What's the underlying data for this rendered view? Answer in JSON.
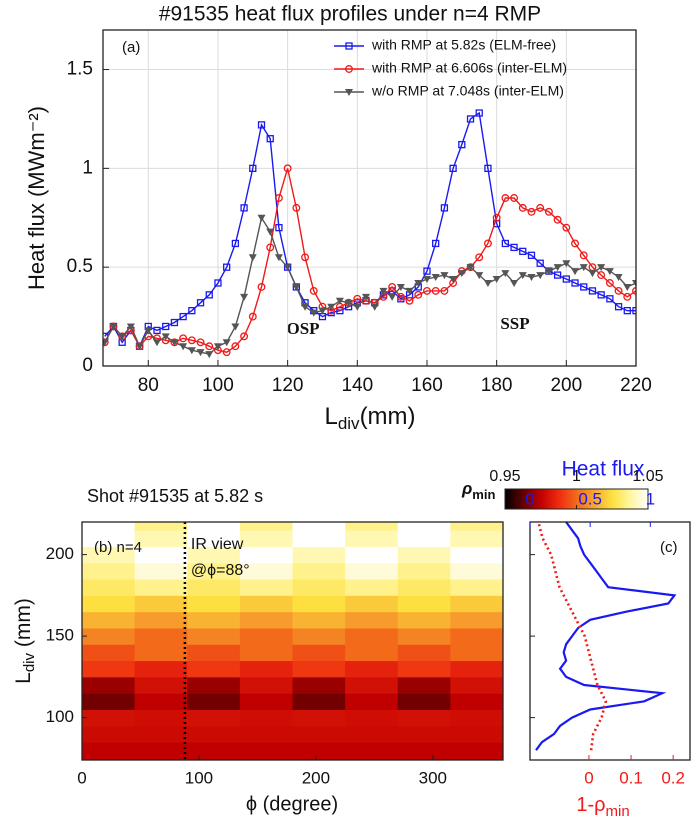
{
  "chart_data": [
    {
      "type": "line",
      "title": "#91535 heat flux profiles under n=4 RMP",
      "panel": "(a)",
      "ylabel": "Heat flux (MWm⁻²)",
      "xlabel": {
        "text": "L",
        "sub": "div",
        "unit": "(mm)"
      },
      "annotations": [
        "OSP",
        "SSP"
      ],
      "grid": true,
      "legend": "upper right",
      "xlim": [
        67,
        220
      ],
      "ylim": [
        0,
        1.7
      ],
      "xticks": [
        80,
        100,
        120,
        140,
        160,
        180,
        200,
        220
      ],
      "yticks": [
        0,
        0.5,
        1,
        1.5
      ],
      "x": [
        67.5,
        70,
        72.5,
        75,
        77.5,
        80,
        82.5,
        85,
        87.5,
        90,
        92.5,
        95,
        97.5,
        100,
        102.5,
        105,
        107.5,
        110,
        112.5,
        115,
        117.5,
        120,
        122.5,
        125,
        127.5,
        130,
        132.5,
        135,
        137.5,
        140,
        142.5,
        145,
        147.5,
        150,
        152.5,
        155,
        157.5,
        160,
        162.5,
        165,
        167.5,
        170,
        172.5,
        175,
        177.5,
        180,
        182.5,
        185,
        187.5,
        190,
        192.5,
        195,
        197.5,
        200,
        202.5,
        205,
        207.5,
        210,
        212.5,
        215,
        217.5,
        220
      ],
      "series": [
        {
          "name": "with RMP at 5.82s (ELM-free)",
          "color": "#1a1af0",
          "marker": "square",
          "values": [
            0.15,
            0.2,
            0.12,
            0.18,
            0.1,
            0.2,
            0.18,
            0.2,
            0.22,
            0.25,
            0.28,
            0.32,
            0.36,
            0.42,
            0.5,
            0.62,
            0.8,
            1.0,
            1.22,
            1.15,
            0.7,
            0.5,
            0.4,
            0.32,
            0.28,
            0.25,
            0.27,
            0.28,
            0.3,
            0.32,
            0.33,
            0.32,
            0.36,
            0.38,
            0.34,
            0.36,
            0.4,
            0.48,
            0.62,
            0.8,
            1.0,
            1.12,
            1.25,
            1.28,
            1.0,
            0.72,
            0.62,
            0.6,
            0.58,
            0.56,
            0.52,
            0.48,
            0.46,
            0.44,
            0.42,
            0.4,
            0.38,
            0.36,
            0.34,
            0.3,
            0.28,
            0.28
          ]
        },
        {
          "name": "with RMP at 6.606s (inter-ELM)",
          "color": "#f01a1a",
          "marker": "circle",
          "values": [
            0.12,
            0.2,
            0.15,
            0.18,
            0.1,
            0.15,
            0.14,
            0.13,
            0.12,
            0.14,
            0.13,
            0.12,
            0.1,
            0.08,
            0.07,
            0.1,
            0.15,
            0.25,
            0.4,
            0.6,
            0.85,
            1.0,
            0.8,
            0.55,
            0.38,
            0.3,
            0.28,
            0.3,
            0.32,
            0.34,
            0.33,
            0.32,
            0.35,
            0.4,
            0.35,
            0.33,
            0.36,
            0.38,
            0.38,
            0.38,
            0.42,
            0.48,
            0.5,
            0.55,
            0.62,
            0.75,
            0.85,
            0.85,
            0.8,
            0.78,
            0.8,
            0.78,
            0.74,
            0.7,
            0.62,
            0.56,
            0.5,
            0.46,
            0.42,
            0.38,
            0.35,
            0.38
          ]
        },
        {
          "name": "w/o RMP at 7.048s (inter-ELM)",
          "color": "#555555",
          "marker": "triangle",
          "values": [
            0.12,
            0.2,
            0.15,
            0.2,
            0.1,
            0.18,
            0.12,
            0.15,
            0.12,
            0.1,
            0.08,
            0.07,
            0.06,
            0.1,
            0.12,
            0.2,
            0.35,
            0.55,
            0.75,
            0.68,
            0.55,
            0.5,
            0.4,
            0.3,
            0.27,
            0.28,
            0.3,
            0.33,
            0.32,
            0.3,
            0.35,
            0.3,
            0.38,
            0.35,
            0.4,
            0.38,
            0.42,
            0.44,
            0.45,
            0.46,
            0.44,
            0.47,
            0.5,
            0.46,
            0.42,
            0.44,
            0.47,
            0.42,
            0.46,
            0.45,
            0.46,
            0.48,
            0.5,
            0.52,
            0.48,
            0.5,
            0.47,
            0.5,
            0.48,
            0.45,
            0.4,
            0.42
          ]
        }
      ]
    },
    {
      "type": "heatmap",
      "title": "Shot #91535 at 5.82 s",
      "panel": "(b) n=4",
      "annotations": [
        "IR view",
        "@ϕ=88°"
      ],
      "ir_view_phi": 88,
      "xlabel": "ϕ (degree)",
      "ylabel": {
        "text": "L",
        "sub": "div",
        "unit": " (mm)"
      },
      "xlim": [
        0,
        360
      ],
      "ylim": [
        74,
        220
      ],
      "xticks": [
        0,
        100,
        200,
        300
      ],
      "yticks": [
        100,
        150,
        200
      ],
      "cbar_label": {
        "text": "ρ",
        "sub": "min"
      },
      "clim": [
        0.95,
        1.05
      ],
      "cticks": [
        0.95,
        1,
        1.05
      ],
      "colormap": [
        "#000000",
        "#600000",
        "#c00000",
        "#ee2a10",
        "#f26a1a",
        "#f8a830",
        "#fde040",
        "#fff6a0",
        "#ffffff"
      ],
      "x": [
        0,
        45,
        90,
        135,
        180,
        225,
        270,
        315
      ],
      "y": [
        80,
        90,
        100,
        110,
        120,
        130,
        140,
        150,
        160,
        170,
        180,
        190,
        200,
        210,
        220
      ],
      "z": [
        [
          0.975,
          0.975,
          0.975,
          0.975,
          0.975,
          0.975,
          0.975,
          0.975
        ],
        [
          0.978,
          0.978,
          0.978,
          0.978,
          0.978,
          0.978,
          0.978,
          0.978
        ],
        [
          0.98,
          0.979,
          0.98,
          0.979,
          0.98,
          0.979,
          0.98,
          0.979
        ],
        [
          0.965,
          0.975,
          0.965,
          0.975,
          0.965,
          0.975,
          0.965,
          0.975
        ],
        [
          0.97,
          0.98,
          0.97,
          0.98,
          0.97,
          0.98,
          0.97,
          0.98
        ],
        [
          0.99,
          0.985,
          0.99,
          0.985,
          0.99,
          0.985,
          0.99,
          0.985
        ],
        [
          0.995,
          1.0,
          0.995,
          1.0,
          0.995,
          1.0,
          0.995,
          1.0
        ],
        [
          1.005,
          1.0,
          1.005,
          1.0,
          1.005,
          1.0,
          1.005,
          1.0
        ],
        [
          1.015,
          1.01,
          1.015,
          1.01,
          1.015,
          1.01,
          1.015,
          1.01
        ],
        [
          1.025,
          1.02,
          1.025,
          1.02,
          1.025,
          1.02,
          1.025,
          1.02
        ],
        [
          1.03,
          1.035,
          1.03,
          1.035,
          1.03,
          1.035,
          1.03,
          1.035
        ],
        [
          1.035,
          1.045,
          1.035,
          1.045,
          1.035,
          1.045,
          1.035,
          1.045
        ],
        [
          1.04,
          1.05,
          1.04,
          1.05,
          1.04,
          1.05,
          1.04,
          1.05
        ],
        [
          1.05,
          1.04,
          1.05,
          1.04,
          1.05,
          1.04,
          1.05,
          1.04
        ],
        [
          1.05,
          1.035,
          1.05,
          1.035,
          1.05,
          1.035,
          1.05,
          1.035
        ]
      ]
    },
    {
      "type": "profile",
      "panel": "(c)",
      "x2label": "Heat flux",
      "xlabel": {
        "text": "1-ρ",
        "sub": "min"
      },
      "ylim": [
        74,
        220
      ],
      "yticks": [
        100,
        150,
        200
      ],
      "x2lim": [
        0,
        1.33
      ],
      "x2ticks": [
        0,
        0.5,
        1
      ],
      "xlim": [
        -0.14,
        0.24
      ],
      "xticks": [
        0,
        0.1,
        0.2
      ],
      "series": [
        {
          "axis": "x2",
          "color": "#1a1af0",
          "style": "solid",
          "y": [
            80,
            85,
            90,
            95,
            100,
            105,
            110,
            115,
            120,
            125,
            130,
            135,
            140,
            145,
            150,
            155,
            160,
            165,
            170,
            175,
            180,
            185,
            190,
            195,
            200,
            205,
            210,
            215,
            220
          ],
          "values": [
            0.05,
            0.1,
            0.2,
            0.25,
            0.35,
            0.5,
            0.95,
            1.1,
            0.45,
            0.3,
            0.25,
            0.3,
            0.28,
            0.3,
            0.35,
            0.4,
            0.5,
            0.8,
            1.15,
            1.2,
            0.65,
            0.6,
            0.55,
            0.5,
            0.45,
            0.42,
            0.4,
            0.35,
            0.3
          ]
        },
        {
          "axis": "x",
          "color": "#f01a1a",
          "style": "dotted",
          "y": [
            80,
            90,
            100,
            110,
            120,
            130,
            140,
            150,
            160,
            170,
            180,
            190,
            200,
            210,
            220
          ],
          "values": [
            0.005,
            0.01,
            0.03,
            0.04,
            0.02,
            0.01,
            0.0,
            -0.01,
            -0.03,
            -0.05,
            -0.07,
            -0.08,
            -0.09,
            -0.11,
            -0.12
          ]
        }
      ]
    }
  ]
}
